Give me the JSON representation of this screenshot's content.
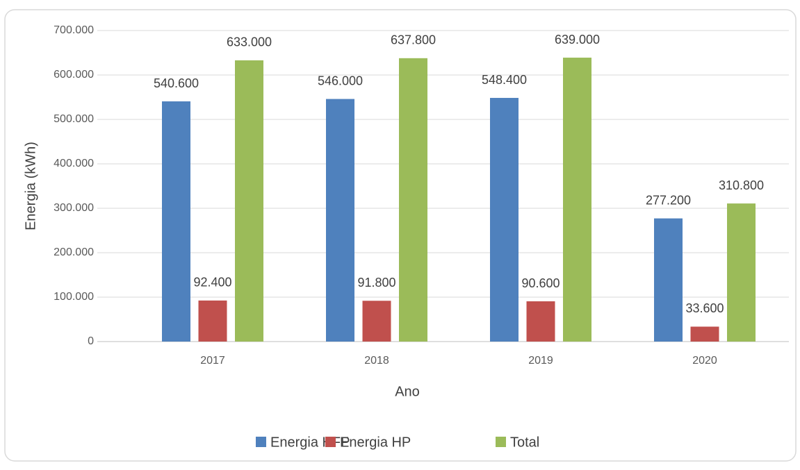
{
  "chart_data": {
    "type": "bar",
    "categories": [
      "2017",
      "2018",
      "2019",
      "2020"
    ],
    "series": [
      {
        "name": "Energia HFP",
        "color": "#4f81bd",
        "values": [
          540600,
          546000,
          548400,
          277200
        ],
        "value_labels": [
          "540.600",
          "546.000",
          "548.400",
          "277.200"
        ]
      },
      {
        "name": "Energia HP",
        "color": "#c0504d",
        "values": [
          92400,
          91800,
          90600,
          33600
        ],
        "value_labels": [
          "92.400",
          "91.800",
          "90.600",
          "33.600"
        ]
      },
      {
        "name": "Total",
        "color": "#9bbb59",
        "values": [
          633000,
          637800,
          639000,
          310800
        ],
        "value_labels": [
          "633.000",
          "637.800",
          "639.000",
          "310.800"
        ]
      }
    ],
    "xlabel": "Ano",
    "ylabel": "Energia (kWh)",
    "ylim": [
      0,
      700000
    ],
    "yticks": [
      0,
      {
        "value": 100000,
        "label": "100.000"
      },
      {
        "value": 200000,
        "label": "200.000"
      },
      {
        "value": 300000,
        "label": "300.000"
      },
      {
        "value": 400000,
        "label": "400.000"
      },
      {
        "value": 500000,
        "label": "500.000"
      },
      {
        "value": 600000,
        "label": "600.000"
      },
      {
        "value": 700000,
        "label": "700.000"
      }
    ],
    "grid": true,
    "legend": "bottom"
  }
}
